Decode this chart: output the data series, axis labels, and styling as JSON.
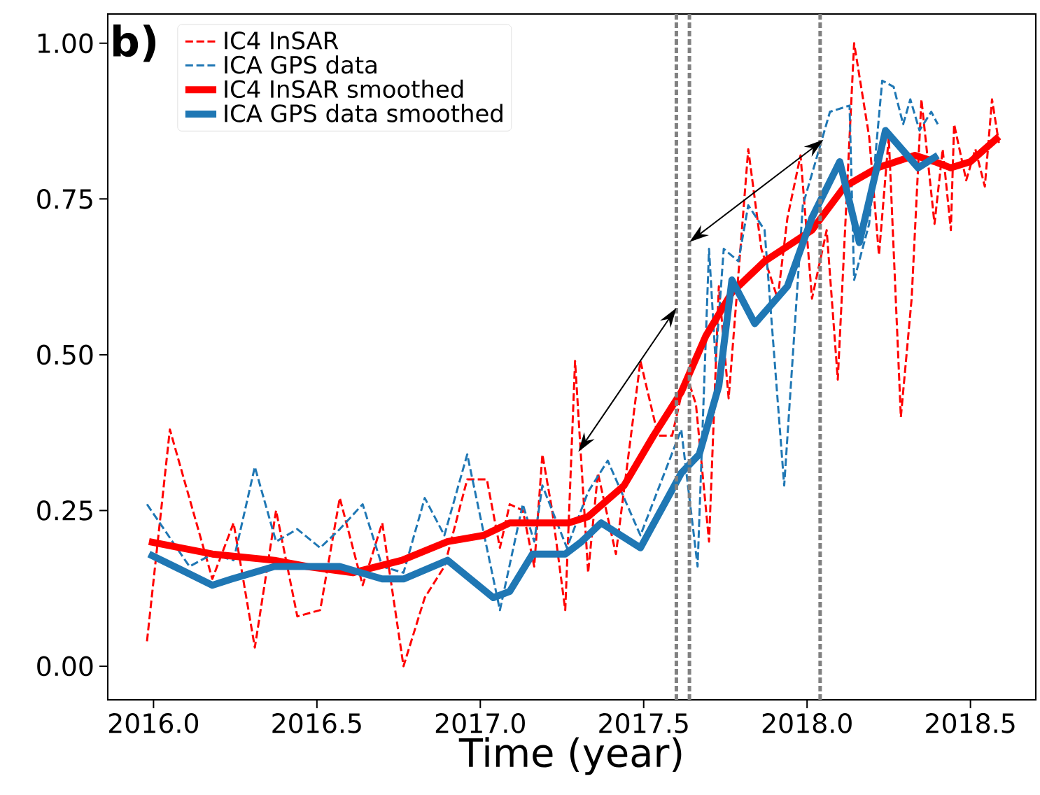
{
  "chart_data": {
    "type": "line",
    "xlabel": "Time (year)",
    "annotations": [
      "b)"
    ],
    "xlim": [
      2015.86,
      2018.7
    ],
    "ylim": [
      -0.054,
      1.047
    ],
    "xticks": [
      {
        "value": 2016.0,
        "label": "2016.0"
      },
      {
        "value": 2016.5,
        "label": "2016.5"
      },
      {
        "value": 2017.0,
        "label": "2017.0"
      },
      {
        "value": 2017.5,
        "label": "2017.5"
      },
      {
        "value": 2018.0,
        "label": "2018.0"
      },
      {
        "value": 2018.5,
        "label": "2018.5"
      }
    ],
    "yticks": [
      {
        "value": 0.0,
        "label": "0.00"
      },
      {
        "value": 0.25,
        "label": "0.25"
      },
      {
        "value": 0.5,
        "label": "0.50"
      },
      {
        "value": 0.75,
        "label": "0.75"
      },
      {
        "value": 1.0,
        "label": "1.00"
      }
    ],
    "grid": false,
    "legend": "top left",
    "ref_lines": [
      {
        "axis": "x",
        "value": 2017.6,
        "color": "#808080",
        "line_style": "dashed"
      },
      {
        "axis": "x",
        "value": 2017.64,
        "color": "#808080",
        "line_style": "dashed"
      },
      {
        "axis": "x",
        "value": 2018.04,
        "color": "#808080",
        "line_style": "dashed"
      }
    ],
    "series": [
      {
        "name": "IC4 InSAR",
        "color": "#ff0000",
        "line_style": "dashed",
        "x": [
          2015.98,
          2016.05,
          2016.18,
          2016.245,
          2016.31,
          2016.375,
          2016.44,
          2016.51,
          2016.57,
          2016.64,
          2016.7,
          2016.765,
          2016.83,
          2016.89,
          2016.96,
          2017.02,
          2017.06,
          2017.09,
          2017.13,
          2017.165,
          2017.19,
          2017.22,
          2017.26,
          2017.29,
          2017.33,
          2017.36,
          2017.415,
          2017.49,
          2017.544,
          2017.587,
          2017.63,
          2017.66,
          2017.7,
          2017.73,
          2017.76,
          2017.82,
          2017.86,
          2017.91,
          2017.94,
          2017.98,
          2018.015,
          2018.06,
          2018.094,
          2018.144,
          2018.19,
          2018.22,
          2018.25,
          2018.287,
          2018.32,
          2018.35,
          2018.39,
          2018.415,
          2018.44,
          2018.45,
          2018.487,
          2018.515,
          2018.544,
          2018.566,
          2018.587
        ],
        "values": [
          0.04,
          0.38,
          0.14,
          0.23,
          0.03,
          0.25,
          0.08,
          0.09,
          0.27,
          0.13,
          0.23,
          0.0,
          0.11,
          0.16,
          0.3,
          0.3,
          0.19,
          0.26,
          0.25,
          0.16,
          0.34,
          0.25,
          0.09,
          0.49,
          0.15,
          0.31,
          0.18,
          0.49,
          0.37,
          0.37,
          0.47,
          0.42,
          0.2,
          0.61,
          0.43,
          0.83,
          0.67,
          0.59,
          0.72,
          0.82,
          0.59,
          0.7,
          0.46,
          1.0,
          0.85,
          0.66,
          0.85,
          0.4,
          0.59,
          0.91,
          0.71,
          0.83,
          0.7,
          0.87,
          0.78,
          0.83,
          0.77,
          0.91,
          0.84
        ]
      },
      {
        "name": "ICA GPS data",
        "color": "#1f77b4",
        "line_style": "dashed",
        "x": [
          2015.98,
          2016.11,
          2016.18,
          2016.245,
          2016.31,
          2016.375,
          2016.44,
          2016.51,
          2016.57,
          2016.64,
          2016.7,
          2016.765,
          2016.83,
          2016.89,
          2016.96,
          2017.06,
          2017.13,
          2017.165,
          2017.19,
          2017.265,
          2017.33,
          2017.39,
          2017.49,
          2017.615,
          2017.665,
          2017.7,
          2017.72,
          2017.745,
          2017.79,
          2017.82,
          2017.87,
          2017.93,
          2017.987,
          2018.037,
          2018.07,
          2018.13,
          2018.144,
          2018.19,
          2018.23,
          2018.265,
          2018.294,
          2018.316,
          2018.344,
          2018.38,
          2018.4
        ],
        "values": [
          0.26,
          0.16,
          0.18,
          0.17,
          0.32,
          0.2,
          0.22,
          0.19,
          0.22,
          0.26,
          0.16,
          0.15,
          0.27,
          0.21,
          0.34,
          0.09,
          0.26,
          0.2,
          0.29,
          0.19,
          0.28,
          0.33,
          0.21,
          0.38,
          0.16,
          0.67,
          0.49,
          0.67,
          0.65,
          0.74,
          0.7,
          0.29,
          0.74,
          0.83,
          0.89,
          0.9,
          0.62,
          0.71,
          0.94,
          0.93,
          0.87,
          0.91,
          0.86,
          0.89,
          0.87
        ]
      },
      {
        "name": "IC4 InSAR smoothed",
        "color": "#ff0000",
        "line_style": "solid",
        "x": [
          2015.986,
          2016.18,
          2016.37,
          2016.47,
          2016.61,
          2016.76,
          2016.9,
          2017.01,
          2017.09,
          2017.27,
          2017.33,
          2017.44,
          2017.53,
          2017.615,
          2017.69,
          2017.77,
          2017.87,
          2018.015,
          2018.115,
          2018.215,
          2018.33,
          2018.39,
          2018.44,
          2018.5,
          2018.587
        ],
        "values": [
          0.2,
          0.18,
          0.17,
          0.16,
          0.15,
          0.17,
          0.2,
          0.21,
          0.23,
          0.23,
          0.24,
          0.29,
          0.37,
          0.44,
          0.53,
          0.6,
          0.65,
          0.7,
          0.77,
          0.8,
          0.82,
          0.81,
          0.8,
          0.81,
          0.85
        ]
      },
      {
        "name": "ICA GPS data smoothed",
        "color": "#1f77b4",
        "line_style": "solid",
        "x": [
          2015.986,
          2016.18,
          2016.24,
          2016.37,
          2016.57,
          2016.7,
          2016.765,
          2016.9,
          2017.04,
          2017.09,
          2017.16,
          2017.26,
          2017.31,
          2017.37,
          2017.49,
          2017.615,
          2017.67,
          2017.73,
          2017.77,
          2017.84,
          2017.94,
          2018.015,
          2018.1,
          2018.16,
          2018.24,
          2018.34,
          2018.4
        ],
        "values": [
          0.18,
          0.13,
          0.14,
          0.16,
          0.16,
          0.14,
          0.14,
          0.17,
          0.11,
          0.12,
          0.18,
          0.18,
          0.2,
          0.23,
          0.19,
          0.31,
          0.34,
          0.45,
          0.62,
          0.55,
          0.61,
          0.72,
          0.81,
          0.68,
          0.86,
          0.8,
          0.82
        ]
      }
    ]
  }
}
